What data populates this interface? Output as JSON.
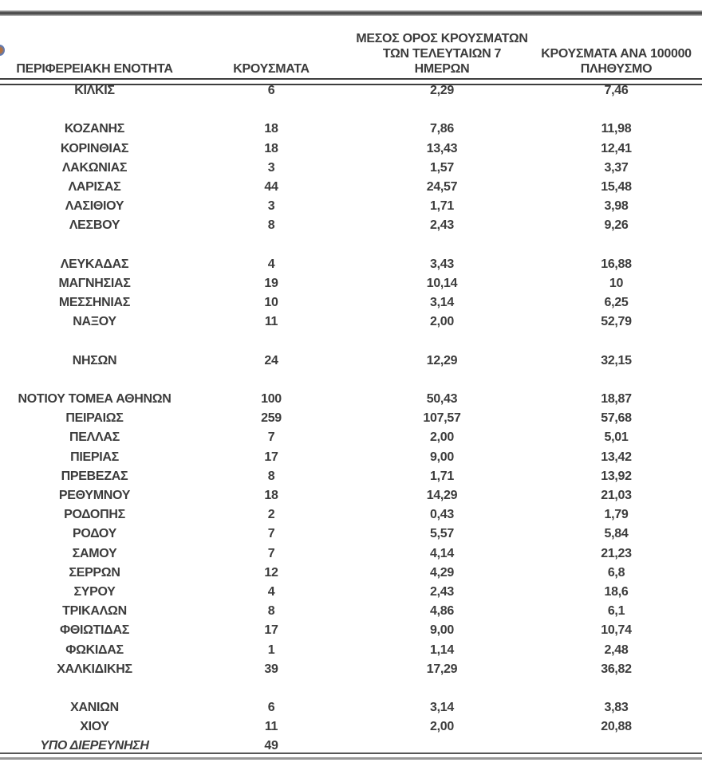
{
  "page": {
    "background": "#ffffff",
    "text_color": "#3c3c3c",
    "rule_dark": "#3e3e3e",
    "rule_gray": "#979797"
  },
  "artifacts": {
    "left_edge_partial_glyph": "0"
  },
  "table": {
    "headers": {
      "region": "ΠΕΡΙΦΕΡΕΙΑΚΗ ΕΝΟΤΗΤΑ",
      "cases": "ΚΡΟΥΣΜΑΤΑ",
      "avg7_line1": "ΜΕΣΟΣ ΟΡΟΣ ΚΡΟΥΣΜΑΤΩΝ",
      "avg7_line2": "ΤΩΝ ΤΕΛΕΥΤΑΙΩΝ 7",
      "avg7_line3": "ΗΜΕΡΩΝ",
      "per100k_line1": "ΚΡΟΥΣΜΑΤΑ ΑΝΑ 100000",
      "per100k_line2": "ΠΛΗΘΥΣΜΟ"
    },
    "rows": [
      {
        "name": "ΚΙΛΚΙΣ",
        "cases": "6",
        "avg7": "2,29",
        "per100k": "7,46"
      },
      {
        "name": "ΚΟΖΑΝΗΣ",
        "cases": "18",
        "avg7": "7,86",
        "per100k": "11,98",
        "gap_before": true
      },
      {
        "name": "ΚΟΡΙΝΘΙΑΣ",
        "cases": "18",
        "avg7": "13,43",
        "per100k": "12,41"
      },
      {
        "name": "ΛΑΚΩΝΙΑΣ",
        "cases": "3",
        "avg7": "1,57",
        "per100k": "3,37"
      },
      {
        "name": "ΛΑΡΙΣΑΣ",
        "cases": "44",
        "avg7": "24,57",
        "per100k": "15,48"
      },
      {
        "name": "ΛΑΣΙΘΙΟΥ",
        "cases": "3",
        "avg7": "1,71",
        "per100k": "3,98"
      },
      {
        "name": "ΛΕΣΒΟΥ",
        "cases": "8",
        "avg7": "2,43",
        "per100k": "9,26"
      },
      {
        "name": "ΛΕΥΚΑΔΑΣ",
        "cases": "4",
        "avg7": "3,43",
        "per100k": "16,88",
        "gap_before": true
      },
      {
        "name": "ΜΑΓΝΗΣΙΑΣ",
        "cases": "19",
        "avg7": "10,14",
        "per100k": "10"
      },
      {
        "name": "ΜΕΣΣΗΝΙΑΣ",
        "cases": "10",
        "avg7": "3,14",
        "per100k": "6,25"
      },
      {
        "name": "ΝΑΞΟΥ",
        "cases": "11",
        "avg7": "2,00",
        "per100k": "52,79"
      },
      {
        "name": "ΝΗΣΩΝ",
        "cases": "24",
        "avg7": "12,29",
        "per100k": "32,15",
        "gap_before": true
      },
      {
        "name": "ΝΟΤΙΟΥ ΤΟΜΕΑ ΑΘΗΝΩΝ",
        "cases": "100",
        "avg7": "50,43",
        "per100k": "18,87",
        "gap_before": true
      },
      {
        "name": "ΠΕΙΡΑΙΩΣ",
        "cases": "259",
        "avg7": "107,57",
        "per100k": "57,68"
      },
      {
        "name": "ΠΕΛΛΑΣ",
        "cases": "7",
        "avg7": "2,00",
        "per100k": "5,01"
      },
      {
        "name": "ΠΙΕΡΙΑΣ",
        "cases": "17",
        "avg7": "9,00",
        "per100k": "13,42"
      },
      {
        "name": "ΠΡΕΒΕΖΑΣ",
        "cases": "8",
        "avg7": "1,71",
        "per100k": "13,92"
      },
      {
        "name": "ΡΕΘΥΜΝΟΥ",
        "cases": "18",
        "avg7": "14,29",
        "per100k": "21,03"
      },
      {
        "name": "ΡΟΔΟΠΗΣ",
        "cases": "2",
        "avg7": "0,43",
        "per100k": "1,79"
      },
      {
        "name": "ΡΟΔΟΥ",
        "cases": "7",
        "avg7": "5,57",
        "per100k": "5,84"
      },
      {
        "name": "ΣΑΜΟΥ",
        "cases": "7",
        "avg7": "4,14",
        "per100k": "21,23"
      },
      {
        "name": "ΣΕΡΡΩΝ",
        "cases": "12",
        "avg7": "4,29",
        "per100k": "6,8"
      },
      {
        "name": "ΣΥΡΟΥ",
        "cases": "4",
        "avg7": "2,43",
        "per100k": "18,6"
      },
      {
        "name": "ΤΡΙΚΑΛΩΝ",
        "cases": "8",
        "avg7": "4,86",
        "per100k": "6,1"
      },
      {
        "name": "ΦΘΙΩΤΙΔΑΣ",
        "cases": "17",
        "avg7": "9,00",
        "per100k": "10,74"
      },
      {
        "name": "ΦΩΚΙΔΑΣ",
        "cases": "1",
        "avg7": "1,14",
        "per100k": "2,48"
      },
      {
        "name": "ΧΑΛΚΙΔΙΚΗΣ",
        "cases": "39",
        "avg7": "17,29",
        "per100k": "36,82"
      },
      {
        "name": "ΧΑΝΙΩΝ",
        "cases": "6",
        "avg7": "3,14",
        "per100k": "3,83",
        "gap_before": true
      },
      {
        "name": "ΧΙΟΥ",
        "cases": "11",
        "avg7": "2,00",
        "per100k": "20,88"
      },
      {
        "name": "ΥΠΟ ΔΙΕΡΕΥΝΗΣΗ",
        "cases": "49",
        "avg7": "",
        "per100k": "",
        "italic": true
      }
    ]
  }
}
